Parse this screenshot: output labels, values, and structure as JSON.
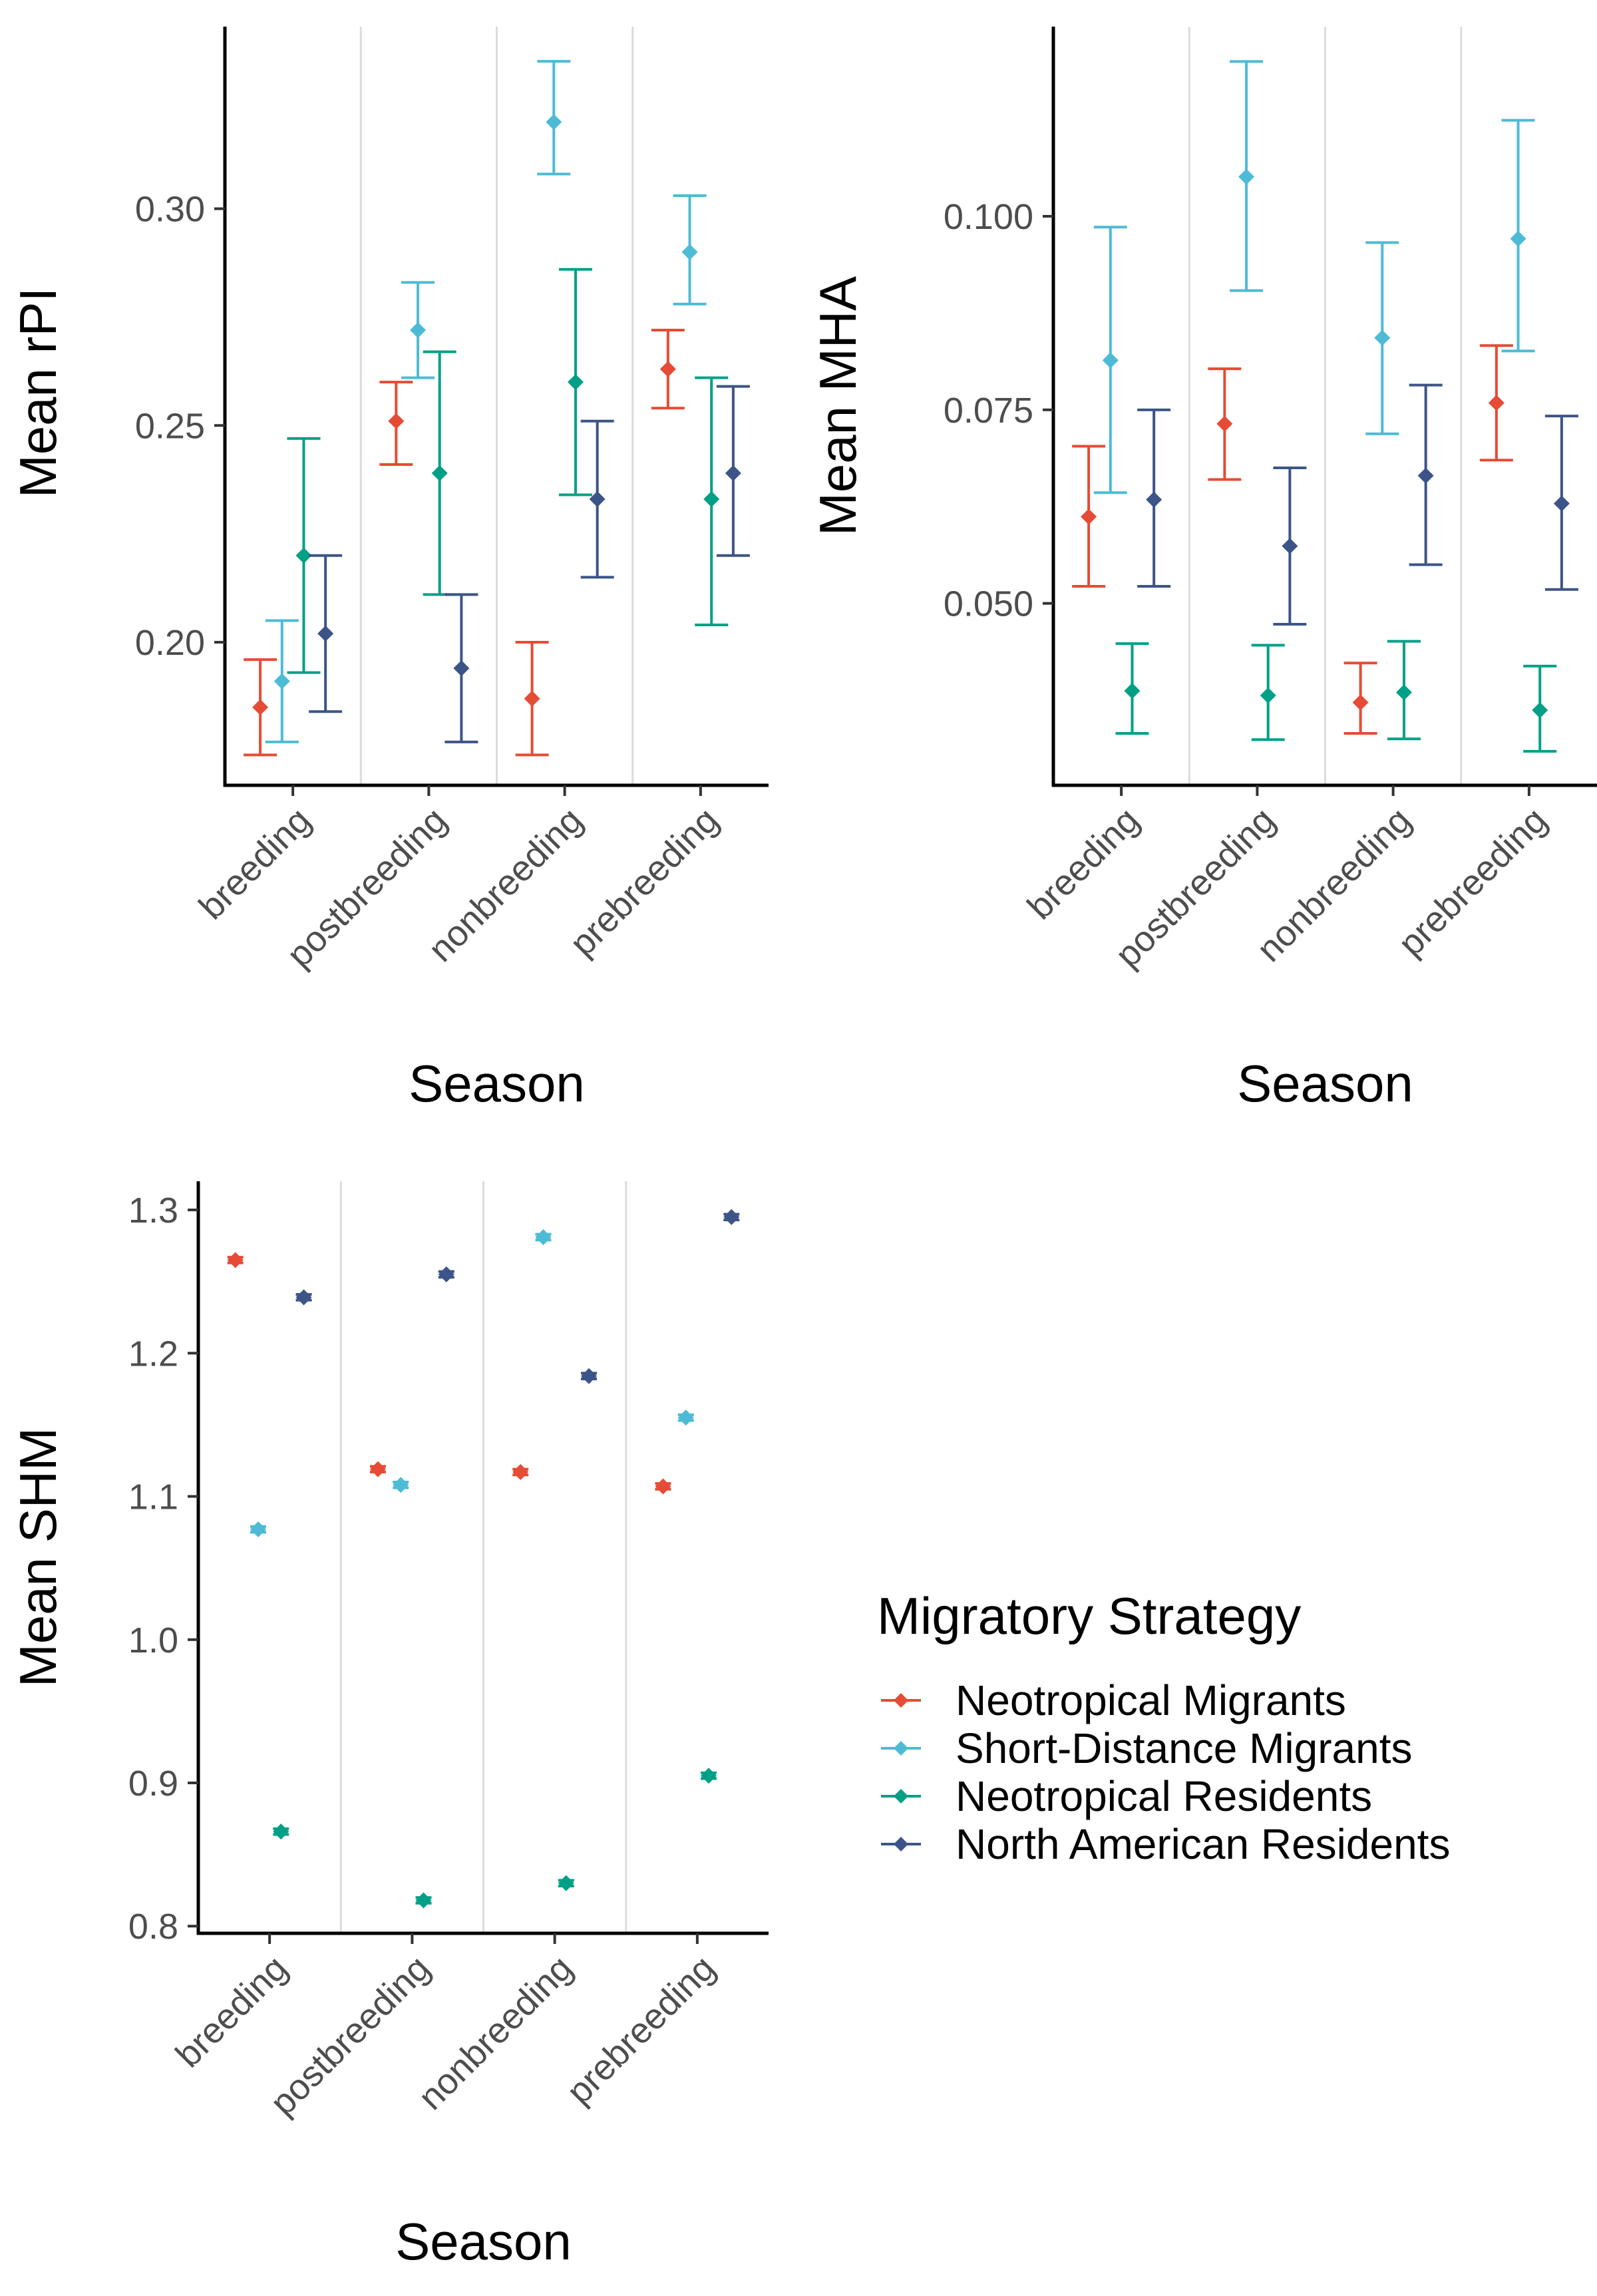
{
  "chart_data": [
    {
      "type": "scatter",
      "panel": "rPI",
      "ylabel": "Mean rPI",
      "xlabel": "Season",
      "categories": [
        "breeding",
        "postbreeding",
        "nonbreeding",
        "prebreeding"
      ],
      "ylim": [
        0.167,
        0.342
      ],
      "yticks": [
        0.2,
        0.25,
        0.3
      ],
      "ytick_labels": [
        "0.20",
        "0.25",
        "0.30"
      ],
      "series": [
        {
          "name": "Neotropical Migrants",
          "color": "#E64B35",
          "values": [
            0.185,
            0.251,
            0.187,
            0.263
          ],
          "lower": [
            0.174,
            0.241,
            0.174,
            0.254
          ],
          "upper": [
            0.196,
            0.26,
            0.2,
            0.272
          ]
        },
        {
          "name": "Short-Distance Migrants",
          "color": "#4DBBD5",
          "values": [
            0.191,
            0.272,
            0.32,
            0.29
          ],
          "lower": [
            0.177,
            0.261,
            0.308,
            0.278
          ],
          "upper": [
            0.205,
            0.283,
            0.334,
            0.303
          ]
        },
        {
          "name": "Neotropical Residents",
          "color": "#00A087",
          "values": [
            0.22,
            0.239,
            0.26,
            0.233
          ],
          "lower": [
            0.193,
            0.211,
            0.234,
            0.204
          ],
          "upper": [
            0.247,
            0.267,
            0.286,
            0.261
          ]
        },
        {
          "name": "North American Residents",
          "color": "#3C5488",
          "values": [
            0.202,
            0.194,
            0.233,
            0.239
          ],
          "lower": [
            0.184,
            0.177,
            0.215,
            0.22
          ],
          "upper": [
            0.22,
            0.211,
            0.251,
            0.259
          ]
        }
      ]
    },
    {
      "type": "scatter",
      "panel": "MHA",
      "ylabel": "Mean MHA",
      "xlabel": "Season",
      "categories": [
        "breeding",
        "postbreeding",
        "nonbreeding",
        "prebreeding"
      ],
      "ylim": [
        0.0265,
        0.1245
      ],
      "yticks": [
        0.05,
        0.075,
        0.1
      ],
      "ytick_labels": [
        "0.050",
        "0.075",
        "0.100"
      ],
      "series": [
        {
          "name": "Neotropical Migrants",
          "color": "#E64B35",
          "values": [
            0.0612,
            0.0732,
            0.0372,
            0.0759
          ],
          "lower": [
            0.0522,
            0.066,
            0.0332,
            0.0685
          ],
          "upper": [
            0.0703,
            0.0803,
            0.0423,
            0.0833
          ]
        },
        {
          "name": "Short-Distance Migrants",
          "color": "#4DBBD5",
          "values": [
            0.0814,
            0.1051,
            0.0843,
            0.0971
          ],
          "lower": [
            0.0643,
            0.0904,
            0.0719,
            0.0826
          ],
          "upper": [
            0.0986,
            0.12,
            0.0966,
            0.1124
          ]
        },
        {
          "name": "Neotropical Residents",
          "color": "#00A087",
          "values": [
            0.0387,
            0.0381,
            0.0385,
            0.0362
          ],
          "lower": [
            0.0332,
            0.0324,
            0.0325,
            0.0309
          ],
          "upper": [
            0.0448,
            0.0446,
            0.0451,
            0.0419
          ]
        },
        {
          "name": "North American Residents",
          "color": "#3C5488",
          "values": [
            0.0634,
            0.0574,
            0.0665,
            0.0629
          ],
          "lower": [
            0.0522,
            0.0473,
            0.055,
            0.0518
          ],
          "upper": [
            0.075,
            0.0675,
            0.0782,
            0.0742
          ]
        }
      ]
    },
    {
      "type": "scatter",
      "panel": "SHM",
      "ylabel": "Mean SHM",
      "xlabel": "Season",
      "categories": [
        "breeding",
        "postbreeding",
        "nonbreeding",
        "prebreeding"
      ],
      "ylim": [
        0.795,
        1.32
      ],
      "yticks": [
        0.8,
        0.9,
        1.0,
        1.1,
        1.2,
        1.3
      ],
      "ytick_labels": [
        "0.8",
        "0.9",
        "1.0",
        "1.1",
        "1.2",
        "1.3"
      ],
      "series": [
        {
          "name": "Neotropical Migrants",
          "color": "#E64B35",
          "values": [
            1.265,
            1.119,
            1.117,
            1.107
          ],
          "lower": [
            1.263,
            1.117,
            1.115,
            1.105
          ],
          "upper": [
            1.267,
            1.121,
            1.119,
            1.109
          ]
        },
        {
          "name": "Short-Distance Migrants",
          "color": "#4DBBD5",
          "values": [
            1.077,
            1.108,
            1.281,
            1.155
          ],
          "lower": [
            1.075,
            1.106,
            1.279,
            1.153
          ],
          "upper": [
            1.079,
            1.11,
            1.283,
            1.157
          ]
        },
        {
          "name": "Neotropical Residents",
          "color": "#00A087",
          "values": [
            0.866,
            0.818,
            0.83,
            0.905
          ],
          "lower": [
            0.864,
            0.816,
            0.828,
            0.903
          ],
          "upper": [
            0.868,
            0.82,
            0.832,
            0.907
          ]
        },
        {
          "name": "North American Residents",
          "color": "#3C5488",
          "values": [
            1.239,
            1.255,
            1.184,
            1.295
          ],
          "lower": [
            1.237,
            1.253,
            1.182,
            1.293
          ],
          "upper": [
            1.241,
            1.257,
            1.186,
            1.297
          ]
        }
      ]
    }
  ],
  "legend": {
    "title": "Migratory Strategy",
    "items": [
      {
        "label": "Neotropical Migrants",
        "color": "#E64B35"
      },
      {
        "label": "Short-Distance Migrants",
        "color": "#4DBBD5"
      },
      {
        "label": "Neotropical Residents",
        "color": "#00A087"
      },
      {
        "label": "North American Residents",
        "color": "#3C5488"
      }
    ]
  }
}
